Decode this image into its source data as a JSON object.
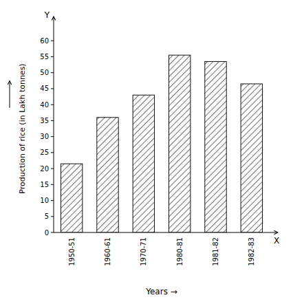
{
  "chart_data": {
    "type": "bar",
    "categories": [
      "1950-51",
      "1960-61",
      "1970-71",
      "1980-81",
      "1981-82",
      "1982-83"
    ],
    "values": [
      21.5,
      36.0,
      43.0,
      55.5,
      53.5,
      46.5
    ],
    "color": "white",
    "ylabel": "Production of rice (in Lakh tonnes)",
    "xlabel": "Years →",
    "ylim": [
      0,
      65
    ],
    "yticks": [
      0,
      5,
      10,
      15,
      20,
      25,
      30,
      35,
      40,
      45,
      50,
      55,
      60
    ],
    "grid": false,
    "annotations": [
      "Y",
      "X"
    ]
  }
}
